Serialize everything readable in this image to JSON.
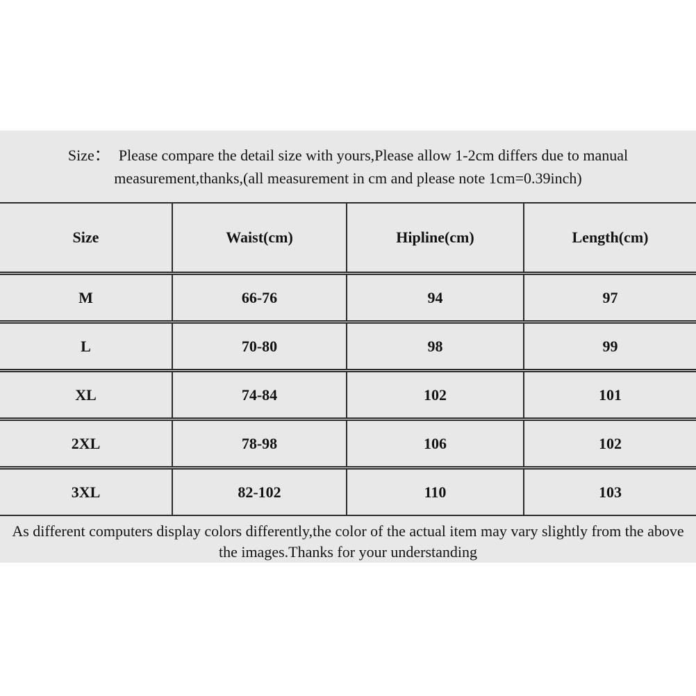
{
  "colors": {
    "panel_background": "#e8e8e8",
    "page_background": "#ffffff",
    "border": "#2b2b2b",
    "text": "#121212"
  },
  "size_note": {
    "label": "Size：",
    "line1": "Please compare the detail size with yours,Please allow 1-2cm differs due to manual",
    "line2": "measurement,thanks,(all measurement in cm and please note 1cm=0.39inch)"
  },
  "size_table": {
    "columns": [
      "Size",
      "Waist(cm)",
      "Hipline(cm)",
      "Length(cm)"
    ],
    "rows": [
      {
        "size": "M",
        "waist": "66-76",
        "hipline": "94",
        "length": "97"
      },
      {
        "size": "L",
        "waist": "70-80",
        "hipline": "98",
        "length": "99"
      },
      {
        "size": "XL",
        "waist": "74-84",
        "hipline": "102",
        "length": "101"
      },
      {
        "size": "2XL",
        "waist": "78-98",
        "hipline": "106",
        "length": "102"
      },
      {
        "size": "3XL",
        "waist": "82-102",
        "hipline": "110",
        "length": "103"
      }
    ]
  },
  "disclaimer": {
    "line1": "As different computers display colors differently,the color of the actual item may vary slightly from the above",
    "line2": "the images.Thanks for your understanding"
  }
}
